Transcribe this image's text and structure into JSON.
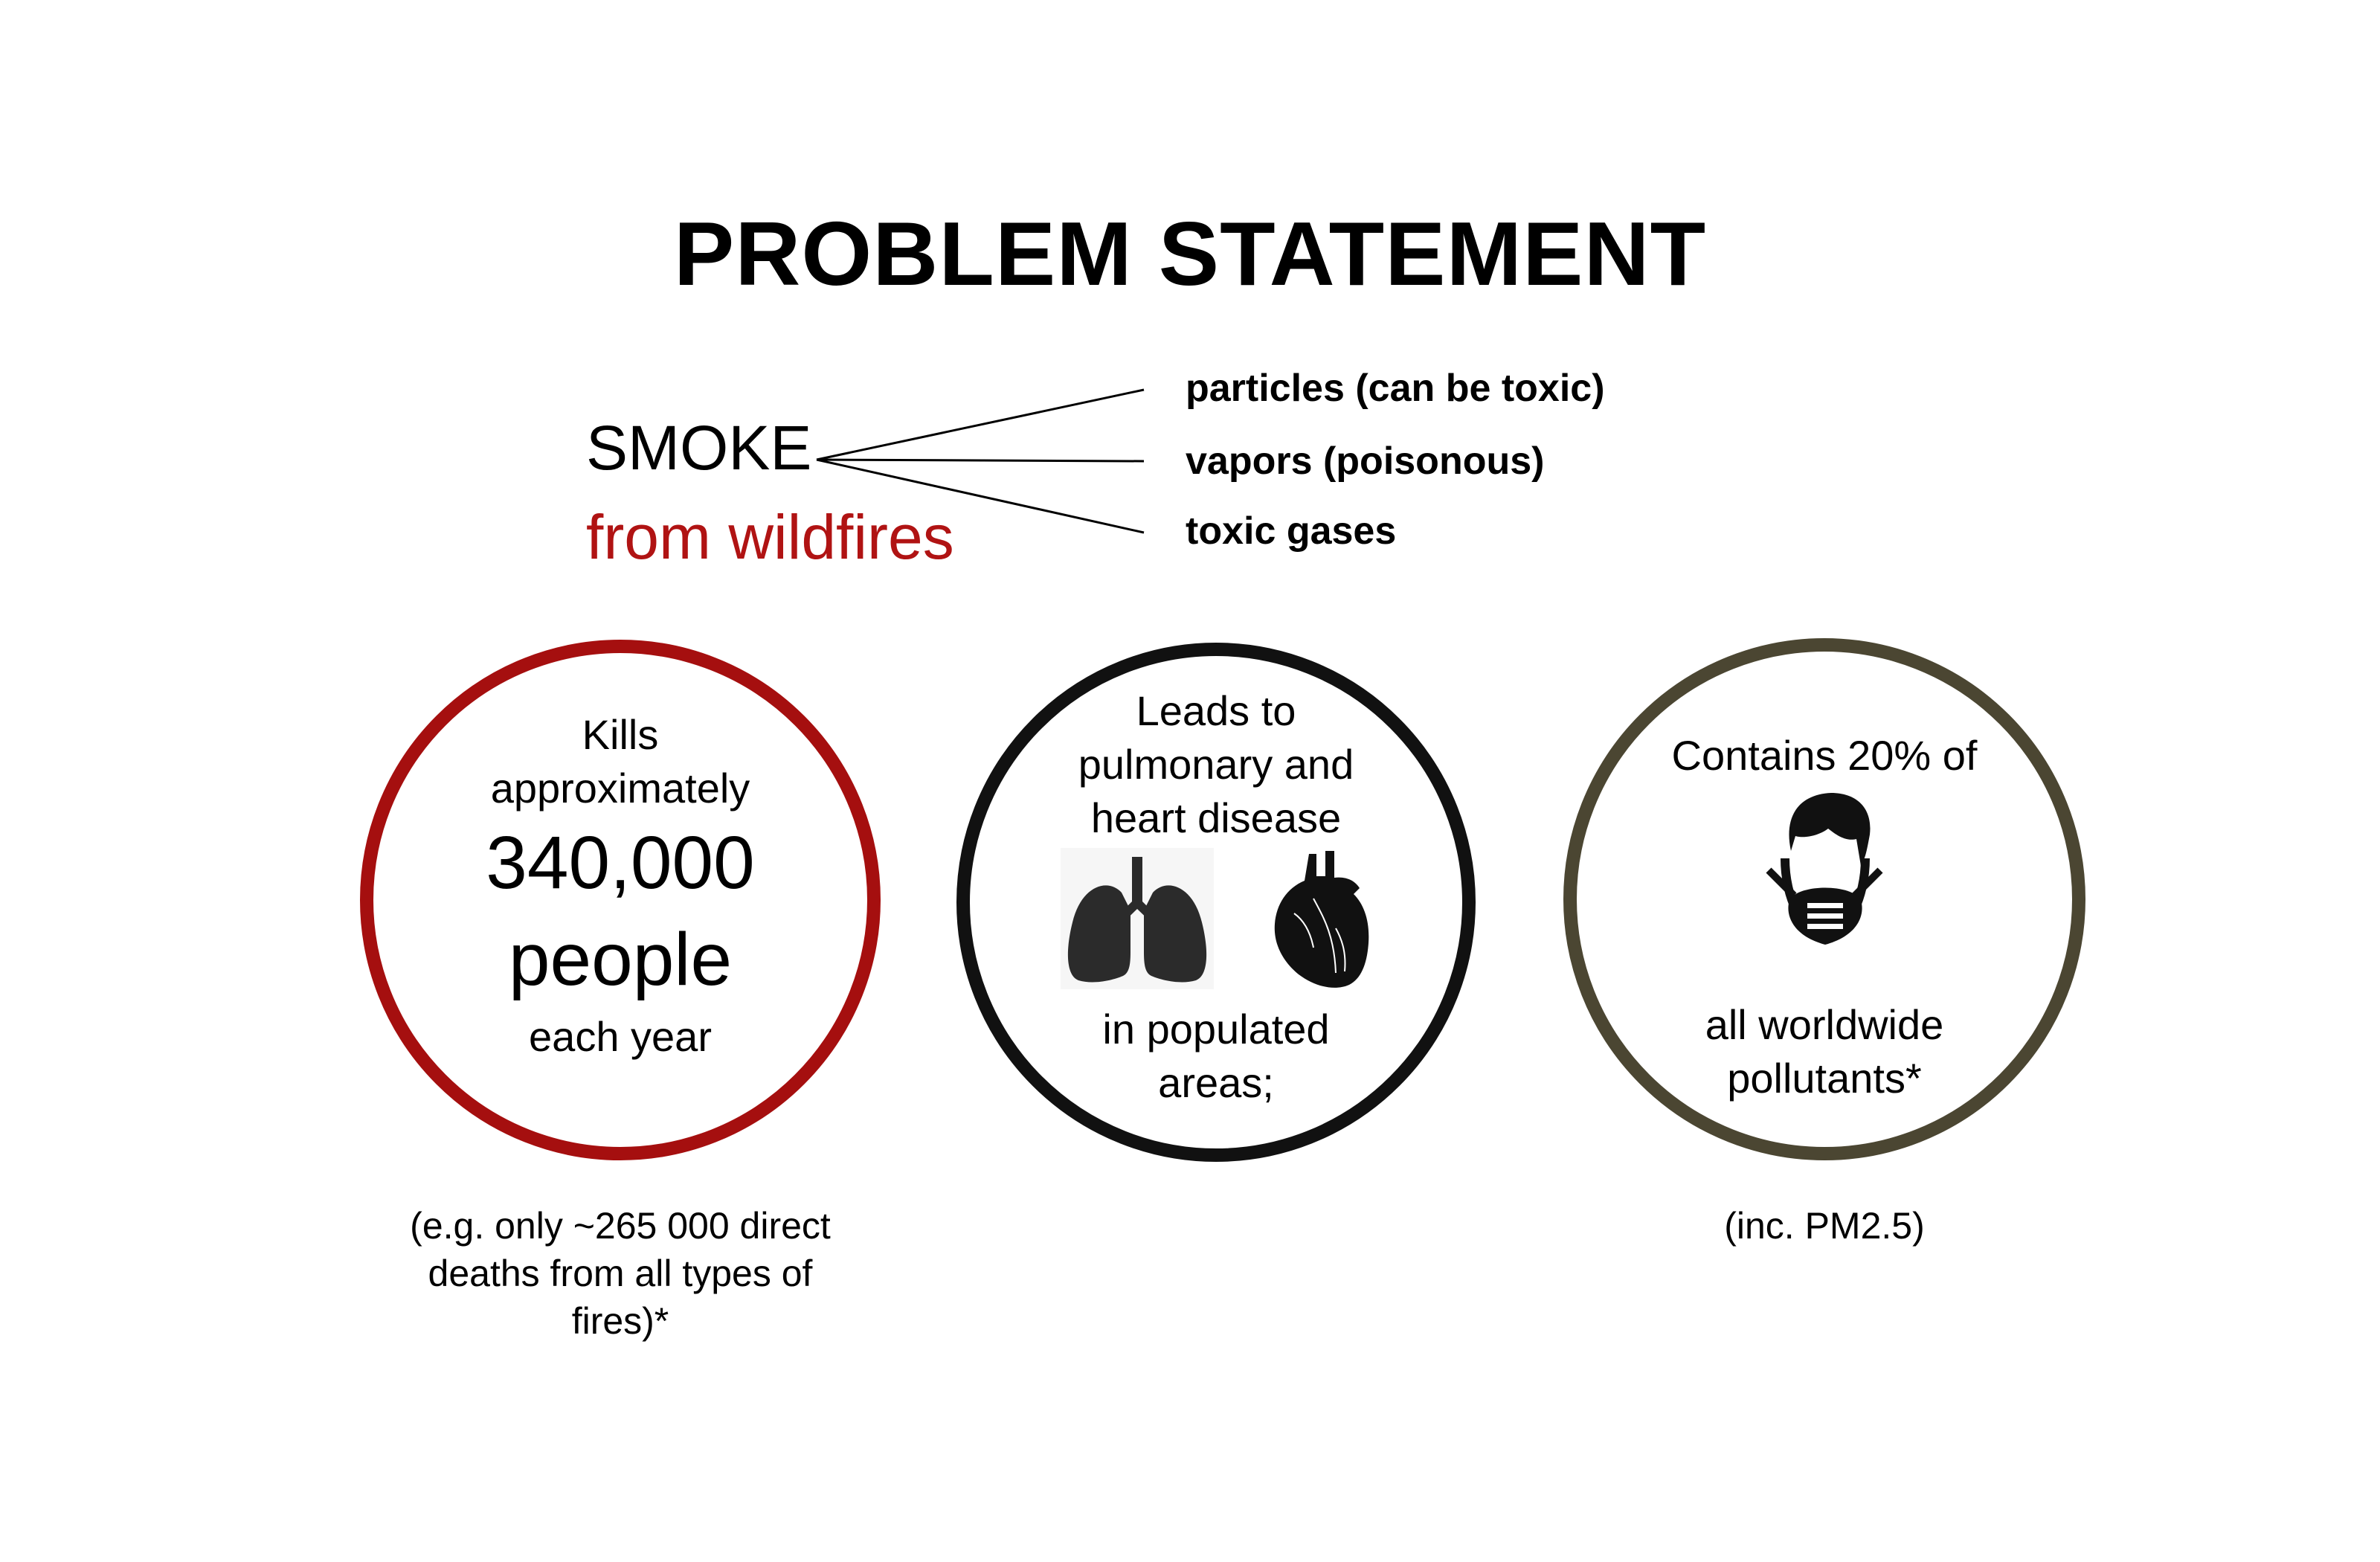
{
  "title": "PROBLEM STATEMENT",
  "smoke": {
    "label": "SMOKE",
    "sublabel": "from wildfires",
    "sublabel_color": "#b01313",
    "branches": [
      "particles (can be toxic)",
      "vapors (poisonous)",
      "toxic gases"
    ]
  },
  "circles": [
    {
      "border_color": "#a50f0f",
      "line1": "Kills",
      "line2": "approximately",
      "number": "340,000",
      "unit": "people",
      "line5": "each year",
      "footnote_lines": [
        "(e.g. only ~265 000 direct",
        "deaths from all types of",
        "fires)*"
      ]
    },
    {
      "border_color": "#111111",
      "line1": "Leads to",
      "line2": "pulmonary and",
      "line3": "heart disease",
      "icons": [
        "lungs-icon",
        "heart-icon"
      ],
      "line4": "in populated",
      "line5": "areas;"
    },
    {
      "border_color": "#4b4632",
      "line1": "Contains 20% of",
      "icons": [
        "masked-person-icon"
      ],
      "line2": "all worldwide",
      "line3": "pollutants*",
      "footnote": "(inc. PM2.5)"
    }
  ]
}
